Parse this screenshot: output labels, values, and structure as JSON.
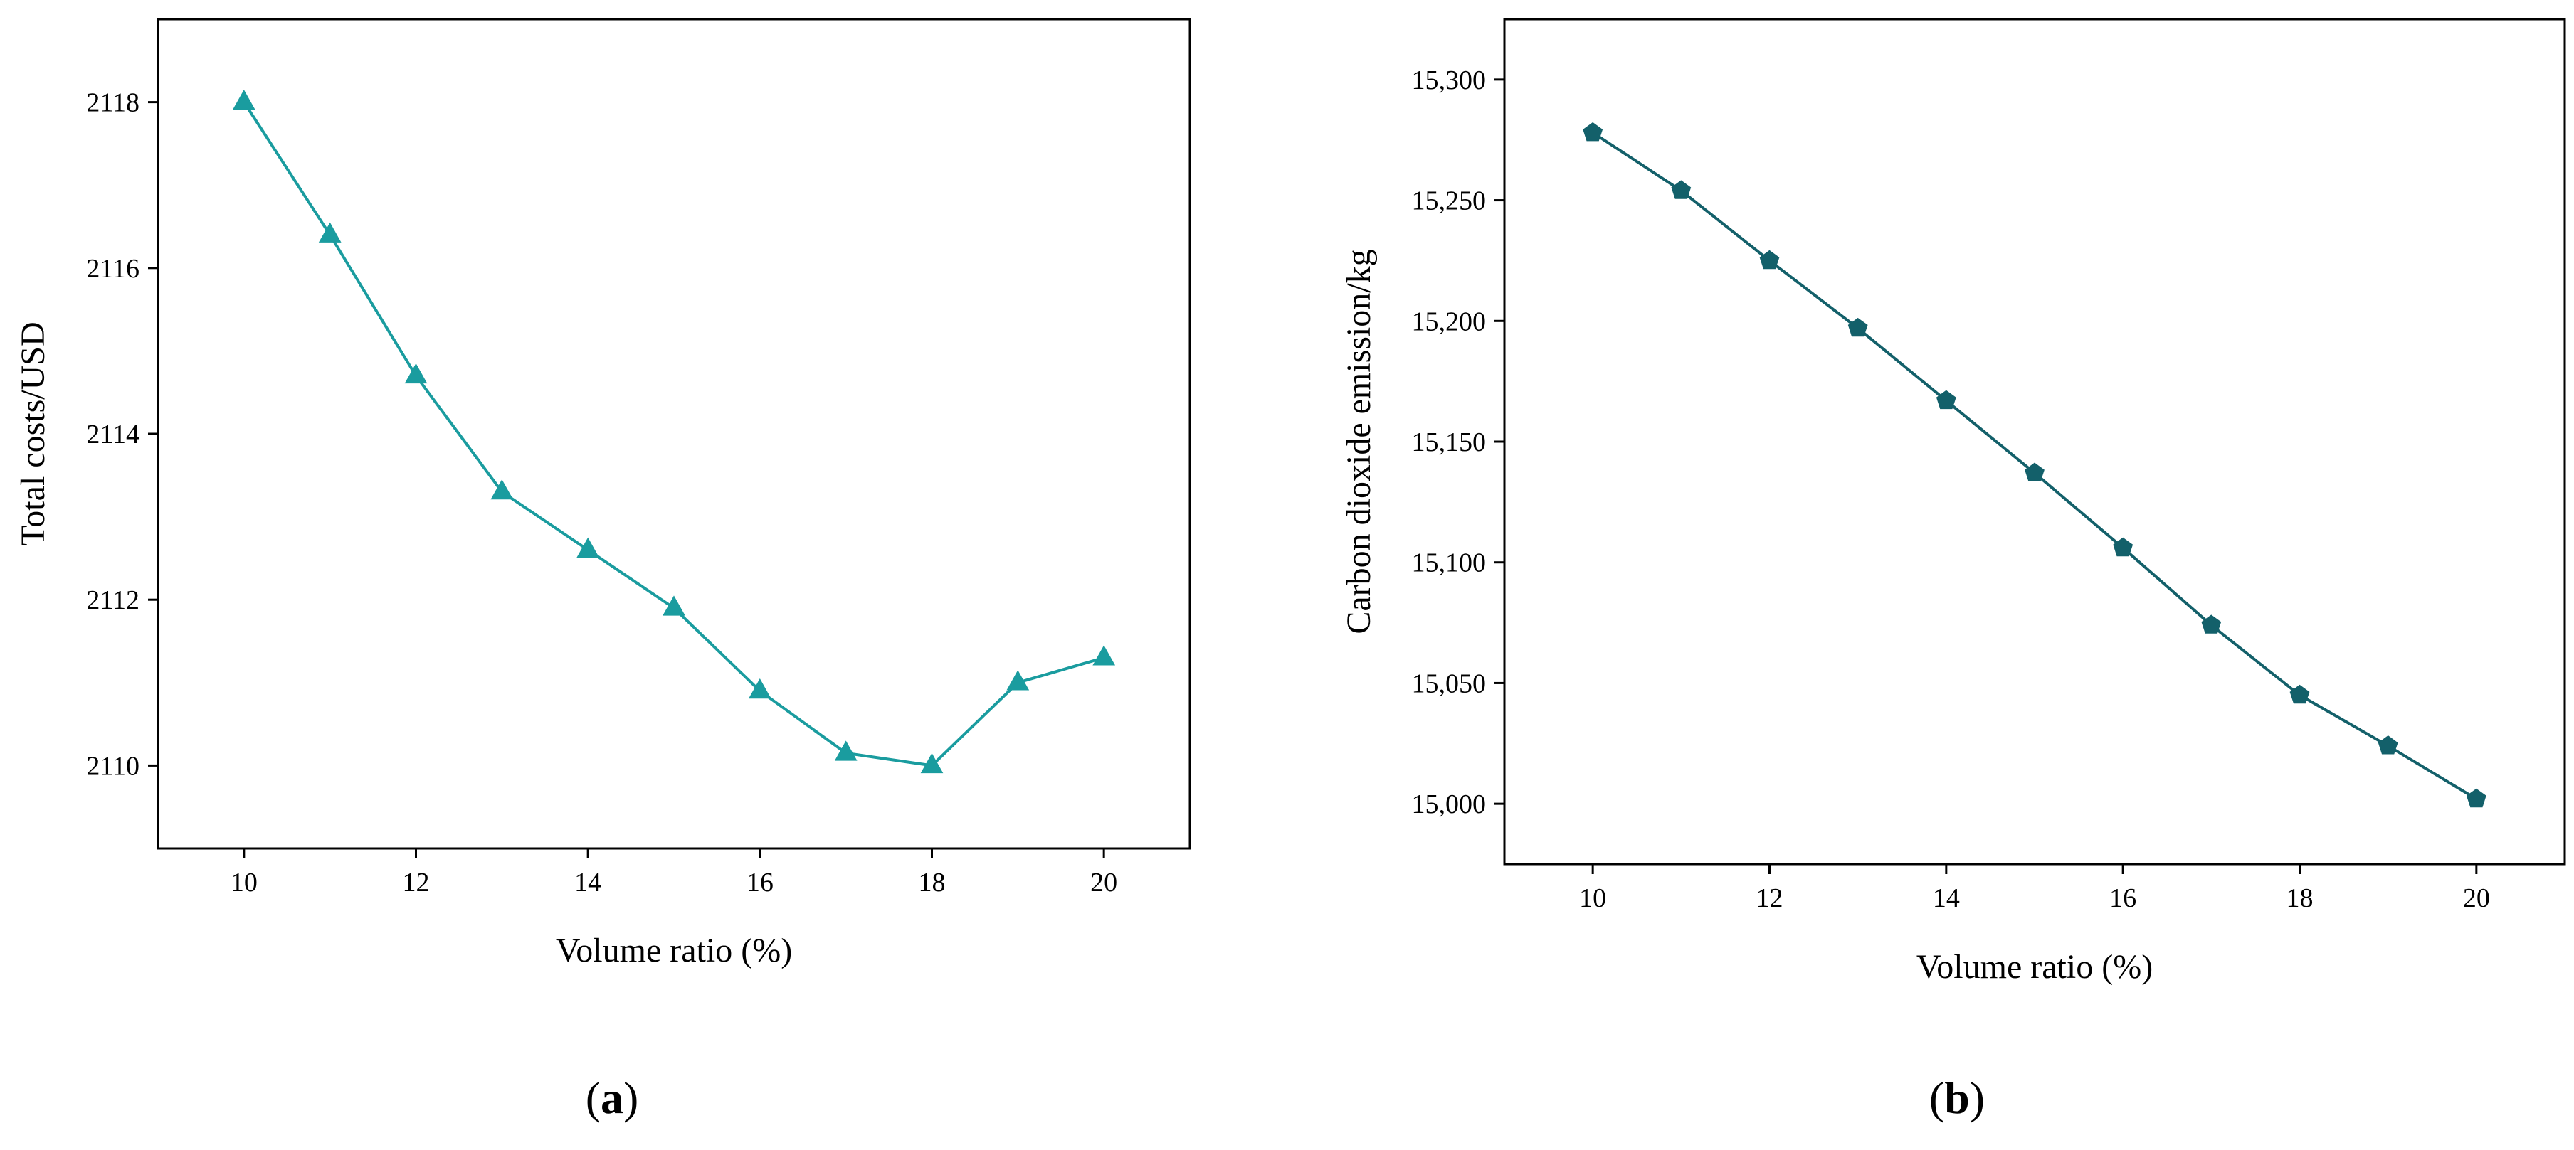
{
  "chart_data": [
    {
      "type": "line",
      "panel": "a",
      "xlabel": "Volume ratio (%)",
      "ylabel": "Total costs/USD",
      "xlim": [
        9,
        21
      ],
      "ylim": [
        2109,
        2119
      ],
      "xticks": [
        10,
        12,
        14,
        16,
        18,
        20
      ],
      "xtick_labels": [
        "10",
        "12",
        "14",
        "16",
        "18",
        "20"
      ],
      "yticks": [
        2110,
        2112,
        2114,
        2116,
        2118
      ],
      "ytick_labels": [
        "2110",
        "2112",
        "2114",
        "2116",
        "2118"
      ],
      "marker": "triangle",
      "color": "#1a9c9f",
      "series": [
        {
          "name": "Total costs",
          "x": [
            10,
            11,
            12,
            13,
            14,
            15,
            16,
            17,
            18,
            19,
            20
          ],
          "y": [
            2118.0,
            2116.4,
            2114.7,
            2113.3,
            2112.6,
            2111.9,
            2110.9,
            2110.15,
            2110.0,
            2111.0,
            2111.3
          ]
        }
      ]
    },
    {
      "type": "line",
      "panel": "b",
      "xlabel": "Volume ratio (%)",
      "ylabel": "Carbon dioxide emission/kg",
      "xlim": [
        9,
        21
      ],
      "ylim": [
        14975,
        15325
      ],
      "xticks": [
        10,
        12,
        14,
        16,
        18,
        20
      ],
      "xtick_labels": [
        "10",
        "12",
        "14",
        "16",
        "18",
        "20"
      ],
      "yticks": [
        15000,
        15050,
        15100,
        15150,
        15200,
        15250,
        15300
      ],
      "ytick_labels": [
        "15,000",
        "15,050",
        "15,100",
        "15,150",
        "15,200",
        "15,250",
        "15,300"
      ],
      "marker": "pentagon",
      "color": "#13606a",
      "series": [
        {
          "name": "Carbon dioxide emission",
          "x": [
            10,
            11,
            12,
            13,
            14,
            15,
            16,
            17,
            18,
            19,
            20
          ],
          "y": [
            15278,
            15254,
            15225,
            15197,
            15167,
            15137,
            15106,
            15074,
            15045,
            15024,
            15002
          ]
        }
      ]
    }
  ],
  "panel_labels": {
    "a": {
      "open": "(",
      "letter": "a",
      "close": ")"
    },
    "b": {
      "open": "(",
      "letter": "b",
      "close": ")"
    }
  }
}
